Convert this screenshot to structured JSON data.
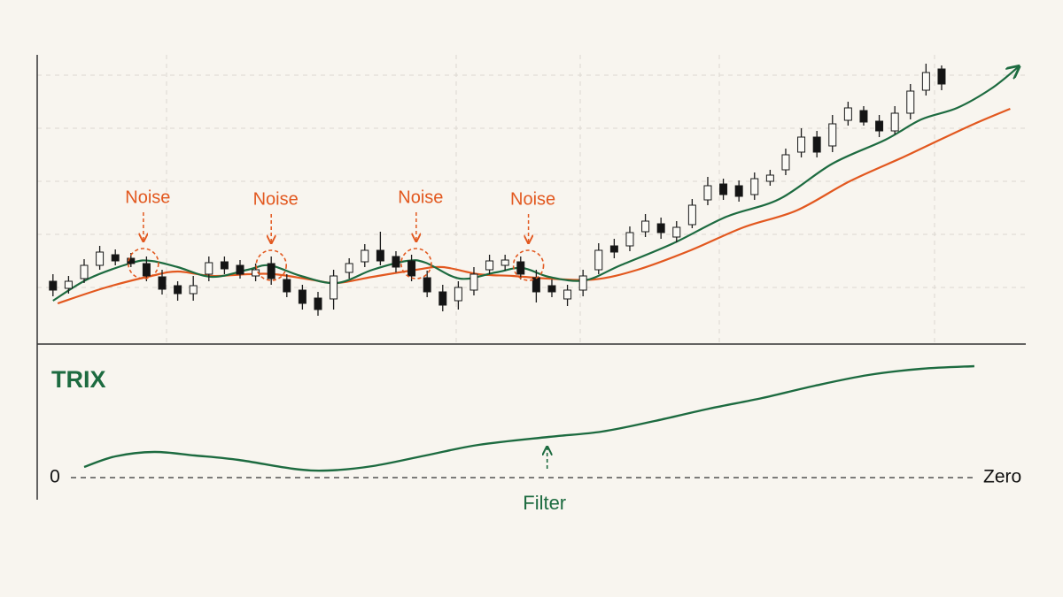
{
  "chart_data": [
    {
      "type": "candlestick",
      "x": [
        0,
        1,
        2,
        3,
        4,
        5,
        6,
        7,
        8,
        9,
        10,
        11,
        12,
        13,
        14,
        15,
        16,
        17,
        18,
        19,
        20,
        21,
        22,
        23,
        24,
        25,
        26,
        27,
        28,
        29,
        30,
        31,
        32,
        33,
        34,
        35,
        36,
        37,
        38,
        39,
        40,
        41,
        42,
        43,
        44,
        45,
        46,
        47,
        48,
        49,
        50,
        51,
        52,
        53,
        54,
        55,
        56,
        57
      ],
      "open": [
        72,
        64,
        75,
        90,
        102,
        98,
        92,
        77,
        67,
        58,
        80,
        94,
        90,
        78,
        92,
        74,
        62,
        53,
        52,
        82,
        94,
        107,
        100,
        95,
        76,
        60,
        50,
        62,
        85,
        90,
        94,
        76,
        67,
        52,
        62,
        85,
        112,
        112,
        128,
        137,
        122,
        136,
        164,
        182,
        180,
        170,
        185,
        198,
        218,
        235,
        225,
        254,
        265,
        253,
        242,
        262,
        288,
        312
      ],
      "high": [
        80,
        78,
        97,
        112,
        108,
        104,
        100,
        85,
        72,
        78,
        100,
        100,
        96,
        92,
        100,
        80,
        68,
        60,
        85,
        98,
        114,
        128,
        106,
        102,
        84,
        68,
        72,
        88,
        102,
        102,
        100,
        85,
        74,
        68,
        85,
        115,
        120,
        134,
        148,
        144,
        140,
        165,
        190,
        188,
        186,
        195,
        198,
        222,
        245,
        242,
        260,
        275,
        270,
        260,
        270,
        295,
        318,
        316
      ],
      "low": [
        55,
        58,
        70,
        85,
        90,
        88,
        72,
        57,
        50,
        50,
        72,
        80,
        75,
        72,
        68,
        54,
        40,
        33,
        40,
        75,
        88,
        90,
        82,
        72,
        54,
        38,
        40,
        56,
        80,
        84,
        74,
        48,
        54,
        44,
        55,
        80,
        98,
        106,
        122,
        120,
        116,
        132,
        158,
        164,
        162,
        164,
        180,
        192,
        212,
        212,
        218,
        248,
        248,
        235,
        238,
        255,
        282,
        288
      ],
      "close": [
        62,
        72,
        90,
        105,
        95,
        92,
        78,
        63,
        58,
        67,
        93,
        86,
        80,
        85,
        75,
        60,
        47,
        40,
        78,
        92,
        107,
        95,
        88,
        78,
        60,
        45,
        65,
        80,
        95,
        96,
        80,
        60,
        60,
        62,
        78,
        107,
        105,
        127,
        140,
        127,
        133,
        158,
        180,
        170,
        168,
        188,
        192,
        215,
        235,
        218,
        250,
        268,
        252,
        242,
        262,
        287,
        308,
        295
      ],
      "up_color": "#fbfaf6",
      "down_color": "#141414",
      "xlim": [
        -0.5,
        62.4
      ],
      "ylim": [
        0,
        330
      ],
      "overlays": [
        {
          "color": "#1d6b40",
          "end_arrow": true,
          "x": [
            0,
            2.3,
            5.1,
            6.3,
            8,
            10.2,
            12.5,
            13.9,
            15.9,
            18.2,
            20.5,
            22.7,
            23.9,
            26.1,
            28.4,
            30.1,
            31.8,
            34.1,
            36.4,
            39.8,
            43.2,
            46.6,
            50,
            53.4,
            55.7,
            58,
            60.2,
            61.9
          ],
          "values": [
            50,
            75,
            93,
            95,
            88,
            77,
            85,
            90,
            78,
            70,
            85,
            95,
            93,
            75,
            82,
            87,
            77,
            73,
            90,
            115,
            145,
            165,
            205,
            232,
            255,
            268,
            290,
            314
          ]
        },
        {
          "color": "#e2581f",
          "end_arrow": false,
          "x": [
            0.3,
            3.4,
            6.3,
            8,
            10.2,
            12.5,
            14.2,
            16.5,
            18.2,
            20.5,
            23.3,
            25,
            27.3,
            29.5,
            31.8,
            34.7,
            37.5,
            40.9,
            44.3,
            47.7,
            51.1,
            54.5,
            56.3,
            59.1,
            61.4
          ],
          "values": [
            47,
            65,
            78,
            83,
            78,
            80,
            80,
            74,
            70,
            77,
            85,
            88,
            80,
            78,
            75,
            74,
            85,
            107,
            133,
            152,
            185,
            212,
            227,
            250,
            267
          ]
        }
      ],
      "annotations": [
        {
          "text": "Noise",
          "x": 5.8,
          "y": 92,
          "color": "#e2581f"
        },
        {
          "text": "Noise",
          "x": 14,
          "y": 90,
          "color": "#e2581f"
        },
        {
          "text": "Noise",
          "x": 23.3,
          "y": 92,
          "color": "#e2581f"
        },
        {
          "text": "Noise",
          "x": 30.5,
          "y": 90,
          "color": "#e2581f"
        }
      ]
    },
    {
      "type": "line",
      "title": "TRIX",
      "color": "#1d6b40",
      "x": [
        2,
        4,
        6.5,
        9.1,
        11.9,
        15.4,
        17.6,
        20.5,
        23.9,
        27.3,
        31.8,
        35.2,
        38.6,
        42.1,
        45.5,
        48.9,
        52.3,
        55.7,
        59.1
      ],
      "values": [
        12,
        24,
        29,
        25,
        20,
        10,
        8,
        13,
        25,
        37,
        46,
        52,
        64,
        78,
        90,
        104,
        116,
        123,
        126
      ],
      "xlim": [
        -0.5,
        62.4
      ],
      "ylim": [
        -25,
        140
      ],
      "yticks": [
        0
      ],
      "zero_label": "Zero",
      "annotations": [
        {
          "text": "Filter",
          "x": 31.7,
          "y": 46,
          "color": "#1d6b40"
        }
      ]
    }
  ]
}
